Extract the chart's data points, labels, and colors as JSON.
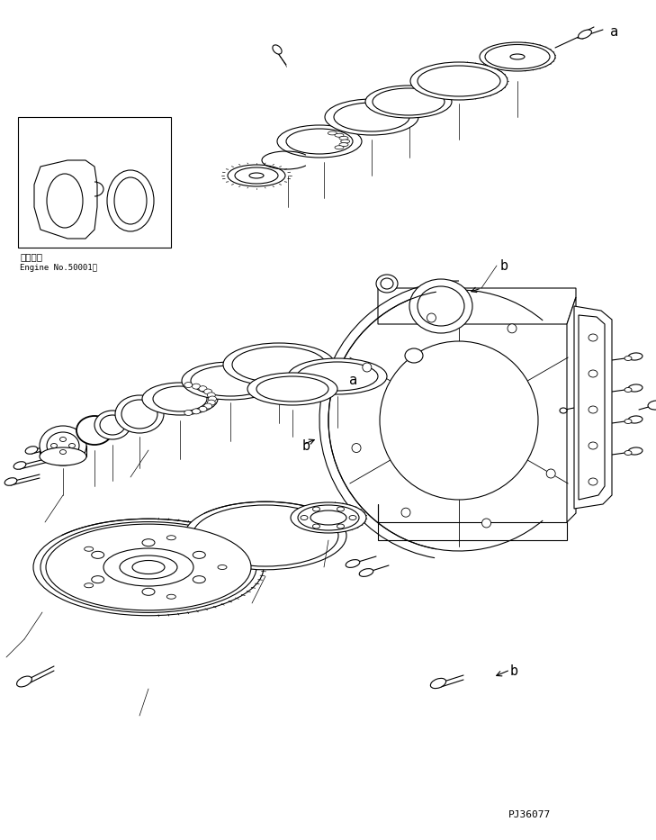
{
  "bg_color": "#ffffff",
  "line_color": "#000000",
  "lw": 0.8,
  "tlw": 0.5,
  "label_a": "a",
  "label_b": "b",
  "inset_text1": "適用号機",
  "inset_text2": "Engine No.50001～",
  "part_number": "PJ36077",
  "fig_width": 7.29,
  "fig_height": 9.33,
  "dpi": 100
}
